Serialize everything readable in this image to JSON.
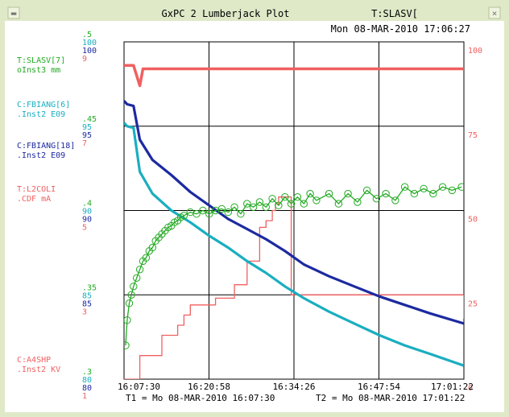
{
  "window": {
    "title": "GxPC 2 Lumberjack Plot",
    "device_title": "T:SLASV[",
    "close_glyph": "×"
  },
  "plot_timestamp": "Mon 08-MAR-2010 17:06:27",
  "footer": {
    "t1": "T1 = Mo 08-MAR-2010 16:07:30",
    "t2": "T2 = Mo 08-MAR-2010 17:01:22"
  },
  "colors": {
    "background": "#ffffff",
    "frame": "#dfe9c8",
    "green": "#22aa22",
    "cyan": "#1aaec0",
    "navy": "#1c2aa0",
    "red": "#f06060",
    "grid": "#000000",
    "text_dark": "#000000"
  },
  "legend": [
    {
      "line1": "T:SLASV[7]",
      "line2": "oInst3  mm",
      "color": "#22aa22"
    },
    {
      "line1": "C:FBIANG[6]",
      "line2": ".Inst2  E09",
      "color": "#1aaec0"
    },
    {
      "line1": "C:FBIANG[18]",
      "line2": ".Inst2  E09",
      "color": "#1c2aa0"
    },
    {
      "line1": "T:L2COLI",
      "line2": ".CDF      mA",
      "color": "#f06060"
    },
    {
      "line1": "C:A4SHP",
      "line2": ".Inst2  KV",
      "color": "#f06060"
    }
  ],
  "chart_data": {
    "type": "line",
    "x_axis": {
      "ticks": [
        "16:07:30",
        "16:20:58",
        "16:34:26",
        "16:47:54",
        "17:01:22"
      ],
      "range": [
        "16:07:30",
        "17:01:22"
      ]
    },
    "left_scales": [
      {
        "ticks": [
          ".5",
          ".45",
          ".4",
          ".35",
          ".3"
        ],
        "color": "#22aa22"
      },
      {
        "ticks": [
          "100",
          "95",
          "90",
          "85",
          "80"
        ],
        "color": "#1aaec0"
      },
      {
        "ticks": [
          "100",
          "95",
          "90",
          "85",
          "80"
        ],
        "color": "#1c2aa0"
      },
      {
        "ticks": [
          "9",
          "7",
          "5",
          "3",
          "1"
        ],
        "color": "#f06060"
      }
    ],
    "right_axis": {
      "ticks": [
        "100",
        "75",
        "50",
        "25",
        "0"
      ],
      "range": [
        0,
        100
      ],
      "color": "#f06060"
    },
    "grid": true,
    "series": [
      {
        "color": "#22aa22",
        "marker": "circle",
        "x": [
          "16:07:45",
          "16:08:00",
          "16:08:20",
          "16:08:40",
          "16:09:00",
          "16:09:30",
          "16:10:00",
          "16:10:30",
          "16:11:00",
          "16:11:30",
          "16:12:00",
          "16:12:30",
          "16:13:00",
          "16:13:30",
          "16:14:00",
          "16:14:30",
          "16:15:00",
          "16:15:30",
          "16:16:00",
          "16:16:30",
          "16:17:00",
          "16:18:00",
          "16:19:00",
          "16:20:00",
          "16:21:00",
          "16:22:00",
          "16:23:00",
          "16:24:00",
          "16:25:00",
          "16:26:00",
          "16:27:00",
          "16:28:00",
          "16:29:00",
          "16:30:00",
          "16:31:00",
          "16:32:00",
          "16:33:00",
          "16:34:00",
          "16:35:00",
          "16:36:00",
          "16:37:00",
          "16:38:00",
          "16:40:00",
          "16:41:30",
          "16:43:00",
          "16:44:30",
          "16:46:00",
          "16:47:30",
          "16:49:00",
          "16:50:30",
          "16:52:00",
          "16:53:30",
          "16:55:00",
          "16:56:30",
          "16:58:00",
          "16:59:30",
          "17:01:00"
        ],
        "y": [
          0.32,
          0.335,
          0.345,
          0.35,
          0.355,
          0.36,
          0.365,
          0.37,
          0.372,
          0.376,
          0.378,
          0.382,
          0.384,
          0.386,
          0.388,
          0.39,
          0.391,
          0.393,
          0.394,
          0.396,
          0.397,
          0.399,
          0.398,
          0.4,
          0.398,
          0.4,
          0.401,
          0.399,
          0.402,
          0.398,
          0.404,
          0.402,
          0.405,
          0.402,
          0.407,
          0.403,
          0.408,
          0.404,
          0.408,
          0.404,
          0.41,
          0.406,
          0.41,
          0.404,
          0.41,
          0.405,
          0.412,
          0.407,
          0.41,
          0.406,
          0.414,
          0.41,
          0.413,
          0.41,
          0.414,
          0.412,
          0.414
        ]
      },
      {
        "color": "#1c2aa0",
        "x": [
          "16:07:30",
          "16:08:00",
          "16:09:00",
          "16:10:00",
          "16:12:00",
          "16:15:00",
          "16:18:00",
          "16:21:00",
          "16:24:00",
          "16:27:00",
          "16:30:00",
          "16:33:00",
          "16:36:00",
          "16:40:00",
          "16:44:00",
          "16:48:00",
          "16:52:00",
          "16:56:00",
          "17:01:22"
        ],
        "y": [
          96.5,
          96.3,
          96.2,
          94.2,
          93.0,
          92.1,
          91.1,
          90.3,
          89.5,
          88.9,
          88.3,
          87.6,
          86.8,
          86.1,
          85.5,
          84.9,
          84.4,
          83.9,
          83.3
        ]
      },
      {
        "color": "#1aaec0",
        "x": [
          "16:07:30",
          "16:08:00",
          "16:09:00",
          "16:10:00",
          "16:12:00",
          "16:15:00",
          "16:18:00",
          "16:21:00",
          "16:24:00",
          "16:27:00",
          "16:30:00",
          "16:33:00",
          "16:36:00",
          "16:40:00",
          "16:44:00",
          "16:48:00",
          "16:52:00",
          "16:56:00",
          "17:01:22"
        ],
        "y": [
          95.2,
          95.0,
          94.9,
          92.3,
          91.0,
          90.0,
          89.3,
          88.5,
          87.8,
          87.0,
          86.3,
          85.5,
          84.8,
          84.0,
          83.3,
          82.6,
          82.0,
          81.5,
          80.8
        ]
      },
      {
        "color": "#f06060",
        "x": [
          "16:07:30",
          "16:09:30",
          "16:10:00",
          "16:13:00",
          "16:13:30",
          "16:15:00",
          "16:16:00",
          "16:17:00",
          "16:18:00",
          "16:21:00",
          "16:22:00",
          "16:24:00",
          "16:25:00",
          "16:26:00",
          "16:27:00",
          "16:28:00",
          "16:29:00",
          "16:30:00",
          "16:31:00",
          "16:31:30",
          "16:32:00",
          "16:34:00",
          "17:01:22"
        ],
        "y": [
          0.0,
          0.0,
          7.0,
          7.0,
          13.0,
          13.0,
          16.0,
          19.0,
          22.0,
          22.0,
          24.0,
          24.0,
          28.0,
          28.0,
          35.0,
          35.0,
          45.0,
          47.0,
          50.0,
          52.0,
          54.0,
          25.0,
          18.0
        ]
      },
      {
        "color": "#f06060",
        "x": [
          "16:07:30",
          "16:09:00",
          "16:10:00",
          "16:10:30",
          "16:15:00",
          "16:20:00",
          "16:25:00",
          "16:30:00",
          "16:35:00",
          "16:40:00",
          "16:45:00",
          "16:50:00",
          "16:55:00",
          "17:01:22"
        ],
        "y": [
          93.0,
          93.0,
          87.0,
          92.0,
          92.0,
          92.0,
          92.0,
          92.0,
          92.0,
          92.0,
          92.0,
          92.0,
          92.0,
          92.0
        ]
      }
    ]
  }
}
